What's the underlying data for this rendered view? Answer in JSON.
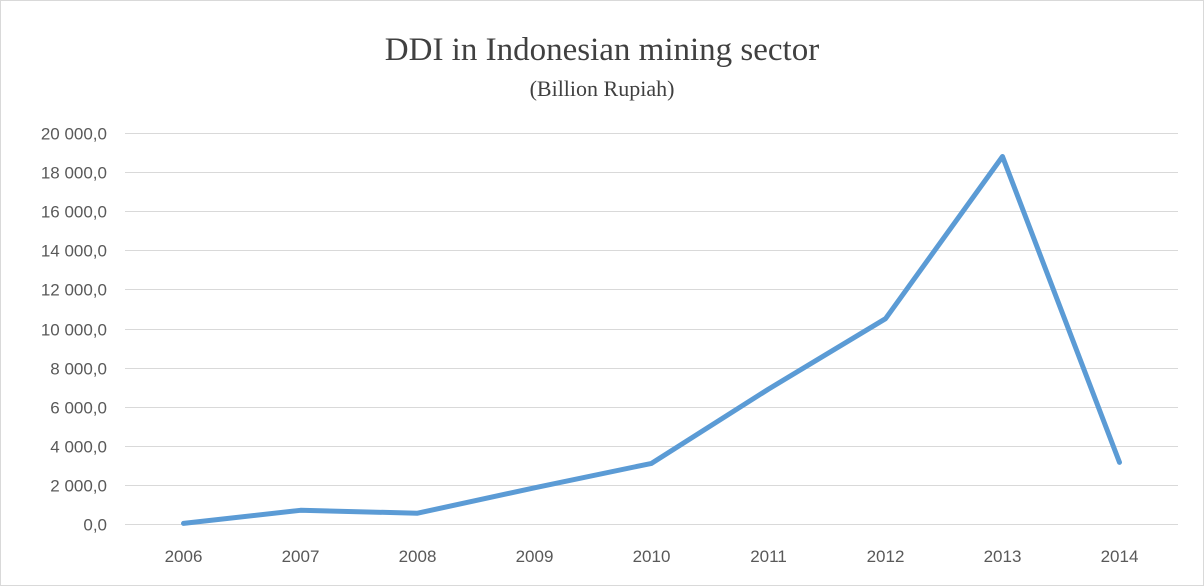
{
  "chart_data": {
    "type": "line",
    "title": "DDI in Indonesian mining sector",
    "subtitle": "(Billion Rupiah)",
    "xlabel": "",
    "ylabel": "",
    "categories": [
      "2006",
      "2007",
      "2008",
      "2009",
      "2010",
      "2011",
      "2012",
      "2013",
      "2014"
    ],
    "series": [
      {
        "values": [
          30,
          700,
          550,
          1850,
          3100,
          6900,
          10500,
          18800,
          3150
        ]
      }
    ],
    "ylim": [
      0,
      20000
    ],
    "ytick_step": 2000,
    "ytick_labels": [
      "0,0",
      "2 000,0",
      "4 000,0",
      "6 000,0",
      "8 000,0",
      "10 000,0",
      "12 000,0",
      "14 000,0",
      "16 000,0",
      "18 000,0",
      "20 000,0"
    ],
    "grid": true,
    "legend": "none",
    "line_color": "#5B9BD5"
  }
}
